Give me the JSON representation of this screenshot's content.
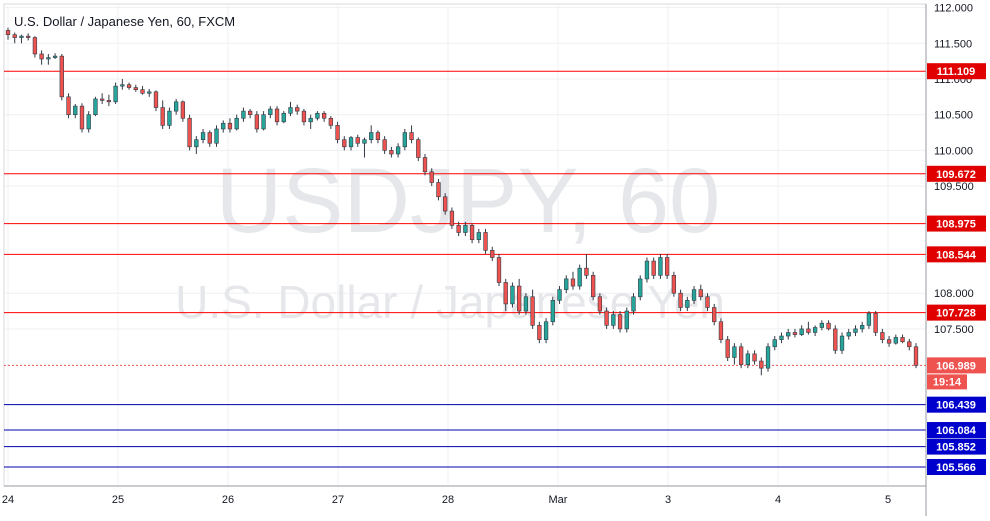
{
  "chart_data": {
    "type": "candlestick",
    "title": "U.S. Dollar / Japanese Yen, 60, FXCM",
    "watermark_symbol": "USDJPY, 60",
    "watermark_name": "U.S. Dollar / Japanese Yen",
    "ylim": [
      105.3,
      112.05
    ],
    "y_ticks": [
      "112.000",
      "111.500",
      "111.000",
      "110.500",
      "110.000",
      "109.500",
      "108.000",
      "107.500"
    ],
    "x_ticks": [
      "24",
      "25",
      "26",
      "27",
      "28",
      "Mar",
      "3",
      "4",
      "5"
    ],
    "resistance_levels": [
      "111.109",
      "109.672",
      "108.975",
      "108.544",
      "107.728"
    ],
    "support_levels": [
      "106.439",
      "106.084",
      "105.852",
      "105.566"
    ],
    "last_price": "106.989",
    "countdown": "19:14",
    "colors": {
      "up": "#26a69a",
      "down": "#ef5350",
      "resistance": "#ff0000",
      "support": "#0000aa",
      "last_label": "#ef5350",
      "grid": "#eef0f3"
    },
    "series": [
      {
        "day": "24",
        "ohlc": [
          [
            111.68,
            111.72,
            111.55,
            111.62
          ],
          [
            111.62,
            111.65,
            111.5,
            111.58
          ],
          [
            111.58,
            111.62,
            111.5,
            111.6
          ]
        ]
      },
      {
        "day": "24b",
        "ohlc": [
          [
            111.6,
            111.64,
            111.54,
            111.58
          ],
          [
            111.58,
            111.6,
            111.3,
            111.35
          ],
          [
            111.35,
            111.4,
            111.2,
            111.28
          ],
          [
            111.28,
            111.35,
            111.2,
            111.3
          ],
          [
            111.3,
            111.36,
            111.28,
            111.32
          ],
          [
            111.32,
            111.35,
            110.7,
            110.75
          ]
        ]
      },
      {
        "day": "24c",
        "ohlc": [
          [
            110.75,
            110.8,
            110.45,
            110.5
          ],
          [
            110.5,
            110.65,
            110.45,
            110.62
          ],
          [
            110.62,
            110.66,
            110.25,
            110.3
          ],
          [
            110.3,
            110.55,
            110.25,
            110.5
          ],
          [
            110.5,
            110.75,
            110.48,
            110.72
          ],
          [
            110.72,
            110.8,
            110.65,
            110.7
          ]
        ]
      },
      {
        "day": "25",
        "ohlc": [
          [
            110.7,
            110.78,
            110.62,
            110.68
          ],
          [
            110.68,
            110.95,
            110.65,
            110.9
          ],
          [
            110.9,
            111.0,
            110.85,
            110.92
          ],
          [
            110.92,
            110.95,
            110.85,
            110.88
          ],
          [
            110.88,
            110.92,
            110.82,
            110.85
          ],
          [
            110.85,
            110.9,
            110.78,
            110.8
          ],
          [
            110.8,
            110.86,
            110.75,
            110.82
          ],
          [
            110.82,
            110.84,
            110.55,
            110.6
          ]
        ]
      },
      {
        "day": "25b",
        "ohlc": [
          [
            110.6,
            110.7,
            110.3,
            110.35
          ],
          [
            110.35,
            110.6,
            110.3,
            110.55
          ],
          [
            110.55,
            110.72,
            110.5,
            110.68
          ],
          [
            110.68,
            110.7,
            110.4,
            110.45
          ],
          [
            110.45,
            110.5,
            110.0,
            110.05
          ],
          [
            110.05,
            110.2,
            109.95,
            110.15
          ],
          [
            110.15,
            110.3,
            110.1,
            110.25
          ],
          [
            110.25,
            110.28,
            110.05,
            110.1
          ],
          [
            110.1,
            110.35,
            110.05,
            110.3
          ],
          [
            110.3,
            110.42,
            110.25,
            110.38
          ],
          [
            110.38,
            110.45,
            110.25,
            110.3
          ]
        ]
      },
      {
        "day": "26",
        "ohlc": [
          [
            110.3,
            110.5,
            110.28,
            110.45
          ],
          [
            110.45,
            110.6,
            110.4,
            110.55
          ],
          [
            110.55,
            110.58,
            110.45,
            110.5
          ],
          [
            110.5,
            110.55,
            110.25,
            110.3
          ],
          [
            110.3,
            110.55,
            110.28,
            110.5
          ],
          [
            110.5,
            110.62,
            110.45,
            110.58
          ],
          [
            110.58,
            110.62,
            110.35,
            110.4
          ],
          [
            110.4,
            110.55,
            110.38,
            110.52
          ],
          [
            110.52,
            110.68,
            110.48,
            110.6
          ],
          [
            110.6,
            110.64,
            110.5,
            110.55
          ],
          [
            110.55,
            110.58,
            110.35,
            110.4
          ],
          [
            110.4,
            110.5,
            110.3,
            110.45
          ]
        ]
      },
      {
        "day": "27",
        "ohlc": [
          [
            110.45,
            110.55,
            110.42,
            110.52
          ],
          [
            110.52,
            110.55,
            110.4,
            110.45
          ],
          [
            110.45,
            110.48,
            110.3,
            110.35
          ],
          [
            110.35,
            110.4,
            110.1,
            110.15
          ],
          [
            110.15,
            110.2,
            110.0,
            110.05
          ],
          [
            110.05,
            110.2,
            110.0,
            110.18
          ],
          [
            110.18,
            110.22,
            110.05,
            110.1
          ],
          [
            110.1,
            110.18,
            109.9,
            110.15
          ],
          [
            110.15,
            110.35,
            110.1,
            110.25
          ],
          [
            110.25,
            110.28,
            110.1,
            110.15
          ],
          [
            110.15,
            110.2,
            109.95,
            110.0
          ]
        ]
      },
      {
        "day": "27b",
        "ohlc": [
          [
            110.0,
            110.05,
            109.9,
            109.95
          ],
          [
            109.95,
            110.1,
            109.9,
            110.05
          ],
          [
            110.05,
            110.3,
            110.0,
            110.25
          ],
          [
            110.25,
            110.35,
            110.1,
            110.15
          ],
          [
            110.15,
            110.18,
            109.85,
            109.9
          ],
          [
            109.9,
            109.95,
            109.65,
            109.7
          ],
          [
            109.7,
            109.75,
            109.5,
            109.55
          ]
        ]
      },
      {
        "day": "28",
        "ohlc": [
          [
            109.55,
            109.6,
            109.3,
            109.35
          ],
          [
            109.35,
            109.4,
            109.1,
            109.15
          ],
          [
            109.15,
            109.2,
            108.9,
            108.95
          ],
          [
            108.95,
            109.0,
            108.8,
            108.85
          ],
          [
            108.85,
            109.0,
            108.8,
            108.95
          ],
          [
            108.95,
            108.98,
            108.7,
            108.75
          ],
          [
            108.75,
            108.9,
            108.7,
            108.85
          ],
          [
            108.85,
            108.9,
            108.55,
            108.6
          ],
          [
            108.6,
            108.65,
            108.45,
            108.5
          ]
        ]
      },
      {
        "day": "28b",
        "ohlc": [
          [
            108.5,
            108.55,
            108.1,
            108.15
          ],
          [
            108.15,
            108.2,
            107.75,
            107.85
          ],
          [
            107.85,
            108.15,
            107.8,
            108.1
          ],
          [
            108.1,
            108.2,
            107.7,
            107.75
          ],
          [
            107.75,
            108.0,
            107.7,
            107.95
          ],
          [
            107.95,
            108.05,
            107.5,
            107.55
          ],
          [
            107.55,
            107.6,
            107.3,
            107.35
          ],
          [
            107.35,
            107.65,
            107.3,
            107.6
          ],
          [
            107.6,
            107.95,
            107.55,
            107.9
          ],
          [
            107.9,
            108.1,
            107.85,
            108.05
          ],
          [
            108.05,
            108.25,
            108.0,
            108.2
          ],
          [
            108.2,
            108.3,
            108.05,
            108.1
          ]
        ]
      },
      {
        "day": "Mar",
        "ohlc": [
          [
            108.1,
            108.4,
            108.05,
            108.35
          ],
          [
            108.35,
            108.55,
            108.2,
            108.25
          ],
          [
            108.25,
            108.3,
            107.9,
            107.95
          ],
          [
            107.95,
            108.0,
            107.7,
            107.75
          ],
          [
            107.75,
            107.8,
            107.5,
            107.55
          ],
          [
            107.55,
            107.75,
            107.5,
            107.7
          ],
          [
            107.7,
            107.75,
            107.45,
            107.5
          ],
          [
            107.5,
            107.8,
            107.45,
            107.75
          ],
          [
            107.75,
            108.0,
            107.7,
            107.95
          ],
          [
            107.95,
            108.25,
            107.9,
            108.2
          ],
          [
            108.2,
            108.5,
            108.15,
            108.45
          ],
          [
            108.45,
            108.5,
            108.2,
            108.25
          ]
        ]
      },
      {
        "day": "3",
        "ohlc": [
          [
            108.25,
            108.55,
            108.2,
            108.5
          ],
          [
            108.5,
            108.55,
            108.2,
            108.25
          ],
          [
            108.25,
            108.3,
            107.95,
            108.0
          ],
          [
            108.0,
            108.05,
            107.75,
            107.8
          ],
          [
            107.8,
            107.95,
            107.75,
            107.9
          ],
          [
            107.9,
            108.1,
            107.85,
            108.05
          ],
          [
            108.05,
            108.12,
            107.9,
            107.95
          ],
          [
            107.95,
            108.0,
            107.75,
            107.8
          ],
          [
            107.8,
            107.85,
            107.55,
            107.6
          ]
        ]
      },
      {
        "day": "3b",
        "ohlc": [
          [
            107.6,
            107.65,
            107.3,
            107.35
          ],
          [
            107.35,
            107.4,
            107.05,
            107.1
          ],
          [
            107.1,
            107.3,
            107.0,
            107.25
          ],
          [
            107.25,
            107.3,
            106.95,
            107.0
          ],
          [
            107.0,
            107.2,
            106.95,
            107.15
          ],
          [
            107.15,
            107.2,
            107.0,
            107.05
          ],
          [
            107.05,
            107.1,
            106.85,
            106.95
          ],
          [
            106.95,
            107.3,
            106.9,
            107.25
          ],
          [
            107.25,
            107.4,
            107.2,
            107.35
          ]
        ]
      },
      {
        "day": "4",
        "ohlc": [
          [
            107.35,
            107.45,
            107.3,
            107.4
          ],
          [
            107.4,
            107.5,
            107.35,
            107.45
          ],
          [
            107.45,
            107.5,
            107.38,
            107.42
          ],
          [
            107.42,
            107.55,
            107.4,
            107.5
          ],
          [
            107.5,
            107.6,
            107.42,
            107.45
          ],
          [
            107.45,
            107.55,
            107.4,
            107.52
          ],
          [
            107.52,
            107.62,
            107.48,
            107.58
          ],
          [
            107.58,
            107.62,
            107.48,
            107.5
          ],
          [
            107.5,
            107.55,
            107.15,
            107.2
          ]
        ]
      },
      {
        "day": "5",
        "ohlc": [
          [
            107.2,
            107.45,
            107.15,
            107.4
          ],
          [
            107.4,
            107.5,
            107.35,
            107.45
          ],
          [
            107.45,
            107.55,
            107.4,
            107.5
          ],
          [
            107.5,
            107.6,
            107.45,
            107.55
          ],
          [
            107.55,
            107.75,
            107.5,
            107.72
          ],
          [
            107.72,
            107.75,
            107.4,
            107.45
          ],
          [
            107.45,
            107.5,
            107.3,
            107.35
          ],
          [
            107.35,
            107.4,
            107.25,
            107.3
          ],
          [
            107.3,
            107.42,
            107.28,
            107.38
          ],
          [
            107.38,
            107.42,
            107.3,
            107.32
          ],
          [
            107.32,
            107.36,
            107.2,
            107.25
          ],
          [
            107.25,
            107.3,
            106.95,
            106.99
          ]
        ]
      }
    ]
  }
}
